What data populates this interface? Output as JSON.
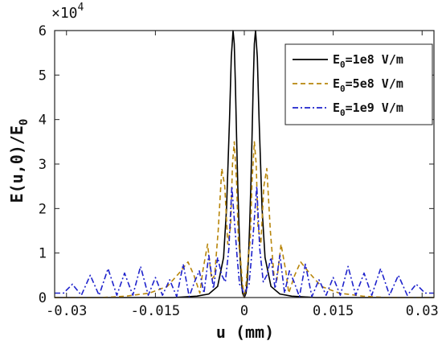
{
  "chart_data": {
    "type": "line",
    "xlabel": "u (mm)",
    "ylabel": "E(u,0)/E0",
    "ylabel_parts": {
      "main": "E(u,0)/E",
      "sub": "0"
    },
    "xlim": [
      -0.032,
      0.032
    ],
    "ylim": [
      0,
      6
    ],
    "y_multiplier": {
      "base": "×10",
      "exponent": "4"
    },
    "x_ticks": [
      -0.03,
      -0.015,
      0,
      0.015,
      0.03
    ],
    "x_tick_labels": [
      "-0.03",
      "-0.015",
      "0",
      "0.015",
      "0.03"
    ],
    "y_ticks": [
      0,
      1,
      2,
      3,
      4,
      5,
      6
    ],
    "y_tick_labels": [
      "0",
      "1",
      "2",
      "3",
      "4",
      "5",
      "6"
    ],
    "grid": false,
    "legend_position": "top-right",
    "series": [
      {
        "name": "E0=1e8 V/m",
        "name_parts": {
          "pre": "E",
          "sub": "0",
          "post": "=1e8 V/m"
        },
        "color": "#000000",
        "dash": "solid",
        "x": [
          -0.032,
          -0.012,
          -0.008,
          -0.006,
          -0.0045,
          -0.0035,
          -0.003,
          -0.0025,
          -0.0022,
          -0.0019,
          -0.0017,
          -0.0015,
          -0.0013,
          -0.0011,
          -0.0009,
          -0.0007,
          -0.0005,
          -0.0003,
          0.0,
          0.0003,
          0.0005,
          0.0007,
          0.0009,
          0.0011,
          0.0013,
          0.0015,
          0.0017,
          0.0019,
          0.0022,
          0.0025,
          0.003,
          0.0035,
          0.0045,
          0.006,
          0.008,
          0.012,
          0.032
        ],
        "y": [
          0,
          0,
          0.03,
          0.08,
          0.25,
          0.9,
          2.0,
          4.0,
          5.4,
          6.0,
          5.7,
          4.8,
          3.6,
          2.5,
          1.6,
          0.9,
          0.4,
          0.1,
          0,
          0.1,
          0.4,
          0.9,
          1.6,
          2.5,
          3.6,
          4.8,
          5.7,
          6.0,
          5.4,
          4.0,
          2.0,
          0.9,
          0.25,
          0.08,
          0.03,
          0,
          0
        ]
      },
      {
        "name": "E0=5e8 V/m",
        "name_parts": {
          "pre": "E",
          "sub": "0",
          "post": "=5e8 V/m"
        },
        "color": "#B8860B",
        "dash": "dashed",
        "x": [
          -0.032,
          -0.024,
          -0.02,
          -0.016,
          -0.013,
          -0.011,
          -0.0095,
          -0.0085,
          -0.0075,
          -0.007,
          -0.0062,
          -0.0055,
          -0.005,
          -0.0044,
          -0.0038,
          -0.0033,
          -0.0028,
          -0.0023,
          -0.002,
          -0.0017,
          -0.0013,
          -0.001,
          -0.0006,
          -0.0003,
          0.0,
          0.0003,
          0.0006,
          0.001,
          0.0013,
          0.0017,
          0.002,
          0.0023,
          0.0028,
          0.0033,
          0.0038,
          0.0044,
          0.005,
          0.0055,
          0.0062,
          0.007,
          0.0075,
          0.0085,
          0.0095,
          0.011,
          0.013,
          0.016,
          0.02,
          0.024,
          0.032
        ],
        "y": [
          0,
          0,
          0.03,
          0.1,
          0.25,
          0.55,
          0.8,
          0.5,
          0.1,
          0.6,
          1.2,
          0.4,
          0.5,
          1.5,
          2.9,
          2.5,
          1.2,
          1.6,
          3.0,
          3.5,
          2.6,
          1.3,
          0.8,
          0.3,
          0,
          0.3,
          0.8,
          1.3,
          2.6,
          3.5,
          3.0,
          1.6,
          1.2,
          2.5,
          2.9,
          1.5,
          0.5,
          0.4,
          1.2,
          0.6,
          0.1,
          0.5,
          0.8,
          0.55,
          0.25,
          0.1,
          0.03,
          0,
          0
        ]
      },
      {
        "name": "E0=1e9 V/m",
        "name_parts": {
          "pre": "E",
          "sub": "0",
          "post": "=1e9 V/m"
        },
        "color": "#1E22CC",
        "dash": "dashdot",
        "x": [
          -0.032,
          -0.0305,
          -0.029,
          -0.0275,
          -0.026,
          -0.0245,
          -0.023,
          -0.0215,
          -0.0202,
          -0.0188,
          -0.0175,
          -0.0162,
          -0.015,
          -0.0138,
          -0.0126,
          -0.0114,
          -0.0103,
          -0.0093,
          -0.0084,
          -0.0076,
          -0.0068,
          -0.006,
          -0.0052,
          -0.0045,
          -0.0038,
          -0.0032,
          -0.0026,
          -0.0021,
          -0.0016,
          -0.0012,
          -0.0008,
          -0.0004,
          0.0,
          0.0004,
          0.0008,
          0.0012,
          0.0016,
          0.0021,
          0.0026,
          0.0032,
          0.0038,
          0.0045,
          0.0052,
          0.006,
          0.0068,
          0.0076,
          0.0084,
          0.0093,
          0.0103,
          0.0114,
          0.0126,
          0.0138,
          0.015,
          0.0162,
          0.0175,
          0.0188,
          0.0202,
          0.0215,
          0.023,
          0.0245,
          0.026,
          0.0275,
          0.029,
          0.0305,
          0.032
        ],
        "y": [
          0.1,
          0.1,
          0.3,
          0.05,
          0.5,
          0.05,
          0.65,
          0.05,
          0.55,
          0.05,
          0.7,
          0.05,
          0.45,
          0.05,
          0.4,
          0.02,
          0.75,
          0.02,
          0.35,
          0.6,
          0.1,
          0.95,
          0.2,
          0.9,
          0.5,
          0.35,
          1.1,
          2.5,
          1.6,
          0.9,
          0.3,
          0.2,
          0.05,
          0.2,
          0.3,
          0.9,
          1.6,
          2.5,
          1.1,
          0.35,
          0.5,
          0.9,
          0.2,
          0.95,
          0.1,
          0.6,
          0.35,
          0.02,
          0.75,
          0.02,
          0.4,
          0.05,
          0.45,
          0.05,
          0.7,
          0.05,
          0.55,
          0.05,
          0.65,
          0.05,
          0.5,
          0.05,
          0.3,
          0.1,
          0.1
        ]
      }
    ]
  }
}
